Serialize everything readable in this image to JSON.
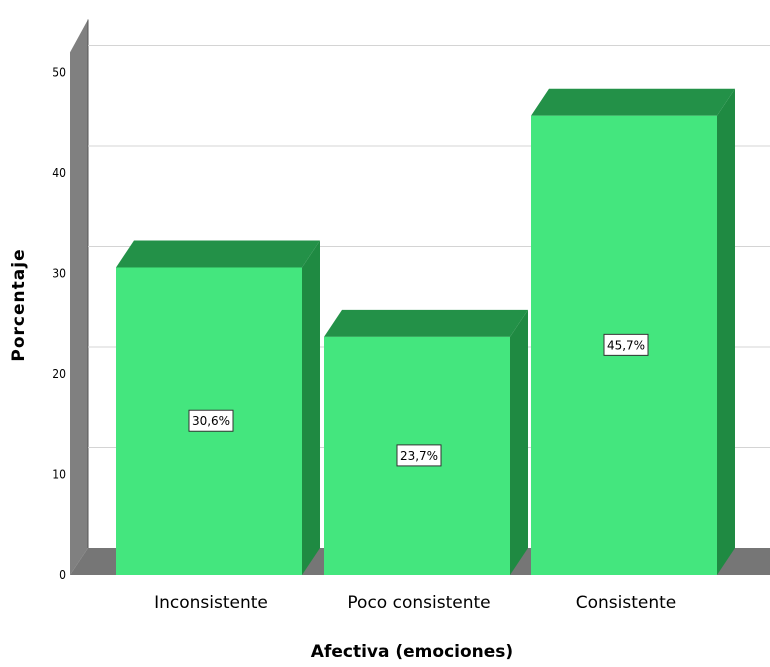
{
  "chart_data": {
    "type": "bar",
    "categories": [
      "Inconsistente",
      "Poco consistente",
      "Consistente"
    ],
    "values": [
      30.6,
      23.7,
      45.7
    ],
    "data_labels": [
      "30,6%",
      "23,7%",
      "45,7%"
    ],
    "ylabel": "Porcentaje",
    "xlabel": "Afectiva (emociones)",
    "ylim": [
      0,
      50
    ],
    "yticks": [
      0,
      10,
      20,
      30,
      40,
      50
    ],
    "grid": true,
    "style": "3d",
    "colors": {
      "bar_front": "#44e67e",
      "bar_top": "#239148",
      "bar_side": "#1f8a42",
      "wall": "#808080",
      "floor": "#767676",
      "grid": "#d4d4d4"
    }
  }
}
